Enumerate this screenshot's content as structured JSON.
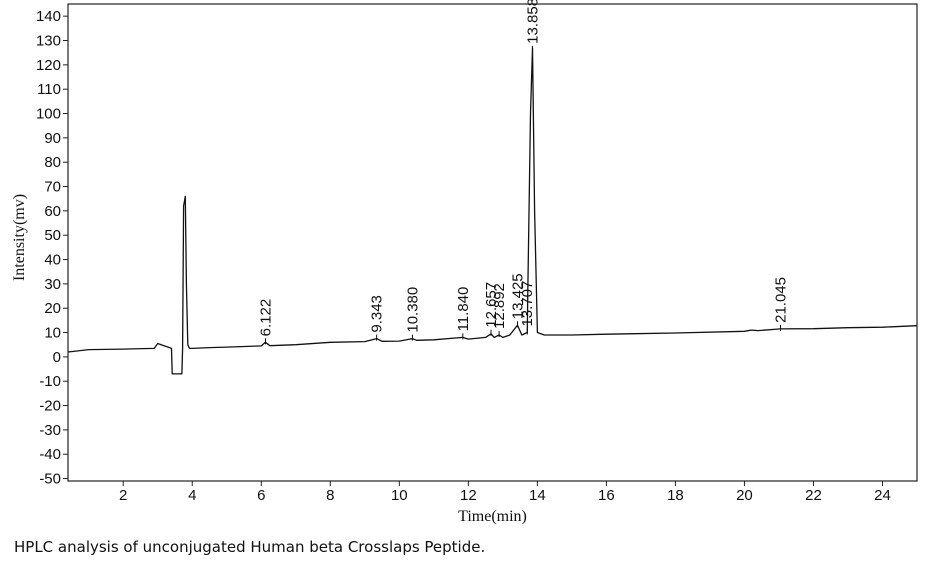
{
  "caption": "HPLC analysis of unconjugated Human beta Crosslaps Peptide.",
  "chart_data": {
    "type": "line",
    "title": "",
    "xlabel": "Time(min)",
    "ylabel": "Intensity(mv)",
    "xlim": [
      0.4,
      25
    ],
    "ylim": [
      -51,
      145
    ],
    "xticks": [
      2,
      4,
      6,
      8,
      10,
      12,
      14,
      16,
      18,
      20,
      22,
      24
    ],
    "yticks": [
      140,
      130,
      120,
      110,
      100,
      90,
      80,
      70,
      60,
      50,
      40,
      30,
      20,
      10,
      0,
      -10,
      -20,
      -30,
      -40,
      -50
    ],
    "grid": false,
    "series": [
      {
        "x": [
          0.4,
          1.0,
          2.0,
          2.9,
          3.0,
          3.1,
          3.3,
          3.4,
          3.42,
          3.5,
          3.7,
          3.72,
          3.75,
          3.8,
          3.83,
          3.87,
          3.92,
          4.0,
          4.5,
          5.0,
          6.0,
          6.12,
          6.25,
          7.0,
          8.0,
          9.0,
          9.343,
          9.5,
          10.0,
          10.38,
          10.5,
          11.0,
          11.84,
          12.0,
          12.5,
          12.657,
          12.75,
          12.892,
          13.0,
          13.2,
          13.425,
          13.55,
          13.707,
          13.72,
          13.8,
          13.858,
          13.92,
          14.0,
          14.2,
          15.0,
          16.0,
          18.0,
          20.0,
          20.2,
          20.4,
          21.045,
          22.0,
          23.0,
          24.0,
          25.0
        ],
        "y": [
          2.0,
          3.0,
          3.2,
          3.5,
          5.5,
          5.0,
          4.0,
          3.5,
          -7.0,
          -7.0,
          -7.0,
          3.5,
          62.0,
          66.0,
          30.0,
          5.0,
          3.5,
          3.5,
          3.8,
          4.0,
          4.5,
          6.0,
          4.6,
          5.0,
          6.0,
          6.3,
          7.5,
          6.4,
          6.5,
          7.5,
          6.8,
          7.0,
          8.0,
          7.3,
          8.0,
          9.5,
          8.0,
          9.0,
          8.0,
          9.0,
          13.0,
          9.0,
          10.0,
          24.0,
          100.0,
          127.0,
          60.0,
          10.0,
          9.0,
          9.0,
          9.3,
          9.8,
          10.5,
          11.0,
          10.8,
          11.5,
          11.6,
          12.0,
          12.2,
          12.8
        ]
      }
    ],
    "peaks": [
      {
        "x": 6.122,
        "label": "6.122"
      },
      {
        "x": 9.343,
        "label": "9.343"
      },
      {
        "x": 10.38,
        "label": "10.380"
      },
      {
        "x": 11.84,
        "label": "11.840"
      },
      {
        "x": 12.657,
        "label": "12.657"
      },
      {
        "x": 12.892,
        "label": "12.892"
      },
      {
        "x": 13.425,
        "label": "13.425"
      },
      {
        "x": 13.707,
        "label": "13.707"
      },
      {
        "x": 13.858,
        "label": "13.858"
      },
      {
        "x": 21.045,
        "label": "21.045"
      }
    ]
  }
}
